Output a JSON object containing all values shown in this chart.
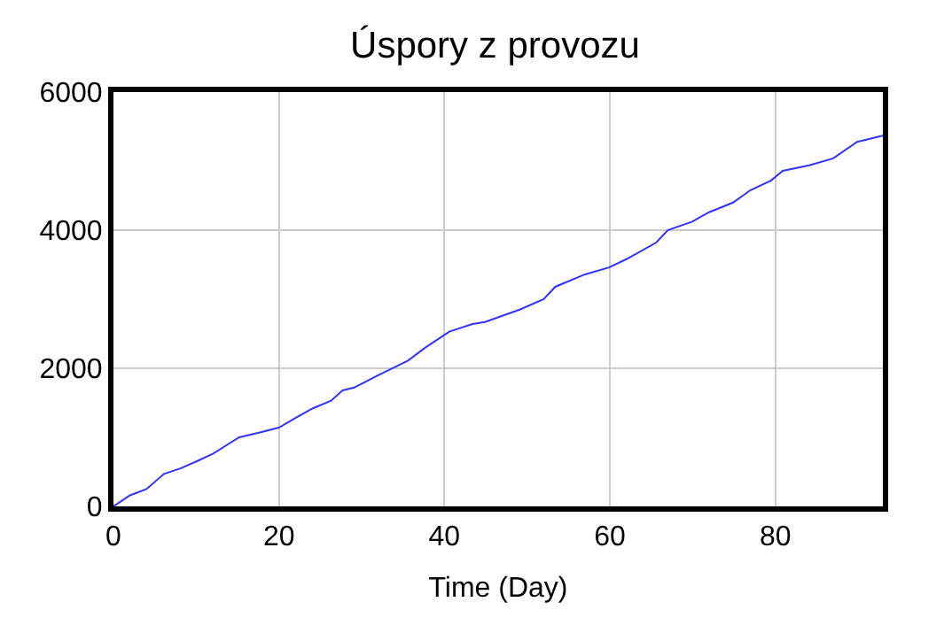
{
  "chart_data": {
    "type": "line",
    "title": "Úspory z provozu",
    "xlabel": "Time (Day)",
    "x": [
      0,
      2,
      4,
      6.1,
      8.1,
      10.2,
      12,
      15.2,
      17.7,
      20,
      22,
      24.1,
      26.3,
      27.7,
      29.1,
      32,
      35.6,
      37.7,
      40.6,
      43.4,
      44.9,
      49.1,
      52,
      53.4,
      57,
      59.9,
      62,
      65.6,
      67,
      69.9,
      72,
      74.9,
      77,
      79.5,
      80.9,
      84.1,
      87,
      89.9,
      93
    ],
    "series": [
      {
        "color": "#3333ff",
        "values": [
          0,
          160,
          250,
          470,
          550,
          660,
          760,
          1000,
          1070,
          1140,
          1280,
          1420,
          1530,
          1680,
          1720,
          1900,
          2110,
          2300,
          2530,
          2640,
          2670,
          2850,
          3000,
          3180,
          3360,
          3460,
          3580,
          3820,
          4000,
          4120,
          4260,
          4400,
          4580,
          4720,
          4860,
          4940,
          5040,
          5280,
          5370
        ]
      }
    ],
    "xlim": [
      0,
      93
    ],
    "xticks": [
      0,
      20,
      40,
      60,
      80
    ],
    "ylim": [
      0,
      6000
    ],
    "yticks": [
      0,
      2000,
      4000,
      6000
    ],
    "grid": true,
    "marker": "none",
    "line_style": "solid"
  }
}
